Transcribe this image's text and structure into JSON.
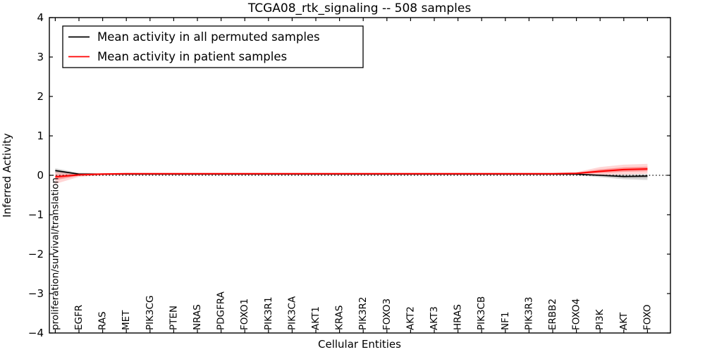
{
  "title": "TCGA08_rtk_signaling -- 508 samples",
  "colors": {
    "background": "#ffffff",
    "axis": "#000000",
    "permuted_line": "#000000",
    "patient_line": "#ff0000",
    "permuted_band": "rgba(0,0,0,0.16)",
    "patient_band": "rgba(255,0,0,0.18)"
  },
  "chart_data": {
    "type": "line",
    "title": "TCGA08_rtk_signaling -- 508 samples",
    "xlabel": "Cellular Entities",
    "ylabel": "Inferred Activity",
    "ylim": [
      -4,
      4
    ],
    "yticks": [
      -4,
      -3,
      -2,
      -1,
      0,
      1,
      2,
      3,
      4
    ],
    "grid": false,
    "zero_line": "dotted",
    "legend_position": "upper left",
    "categories": [
      "proliferation/survival/translation",
      "EGFR",
      "RAS",
      "MET",
      "PIK3CG",
      "PTEN",
      "NRAS",
      "PDGFRA",
      "FOXO1",
      "PIK3R1",
      "PIK3CA",
      "AKT1",
      "KRAS",
      "PIK3R2",
      "FOXO3",
      "AKT2",
      "AKT3",
      "HRAS",
      "PIK3CB",
      "NF1",
      "PIK3R3",
      "ERBB2",
      "FOXO4",
      "PI3K",
      "AKT",
      "FOXO"
    ],
    "series": [
      {
        "name": "Mean activity in all permuted samples",
        "color": "#000000",
        "values": [
          0.12,
          0.03,
          0.03,
          0.03,
          0.03,
          0.03,
          0.03,
          0.03,
          0.03,
          0.03,
          0.03,
          0.03,
          0.03,
          0.03,
          0.03,
          0.03,
          0.03,
          0.03,
          0.03,
          0.03,
          0.03,
          0.03,
          0.03,
          0.0,
          -0.03,
          -0.02
        ],
        "band_upper": [
          0.18,
          0.06,
          0.05,
          0.05,
          0.05,
          0.05,
          0.05,
          0.05,
          0.05,
          0.05,
          0.05,
          0.05,
          0.05,
          0.05,
          0.05,
          0.05,
          0.05,
          0.05,
          0.05,
          0.05,
          0.05,
          0.05,
          0.04,
          0.03,
          0.02,
          0.03
        ],
        "band_lower": [
          0.05,
          0.0,
          0.01,
          0.01,
          0.01,
          0.01,
          0.01,
          0.01,
          0.01,
          0.01,
          0.01,
          0.01,
          0.01,
          0.01,
          0.01,
          0.01,
          0.01,
          0.01,
          0.01,
          0.01,
          0.01,
          0.01,
          0.0,
          -0.05,
          -0.1,
          -0.12
        ]
      },
      {
        "name": "Mean activity in patient samples",
        "color": "#ff0000",
        "values": [
          -0.04,
          0.01,
          0.03,
          0.04,
          0.04,
          0.04,
          0.04,
          0.04,
          0.04,
          0.04,
          0.04,
          0.04,
          0.04,
          0.04,
          0.04,
          0.04,
          0.04,
          0.04,
          0.04,
          0.04,
          0.04,
          0.04,
          0.05,
          0.1,
          0.145,
          0.16
        ],
        "band_upper": [
          0.09,
          0.06,
          0.06,
          0.06,
          0.06,
          0.06,
          0.06,
          0.06,
          0.06,
          0.06,
          0.06,
          0.06,
          0.06,
          0.06,
          0.06,
          0.06,
          0.06,
          0.06,
          0.06,
          0.06,
          0.06,
          0.06,
          0.08,
          0.21,
          0.27,
          0.29
        ],
        "band_lower": [
          -0.22,
          -0.04,
          0.0,
          0.01,
          0.01,
          0.01,
          0.01,
          0.01,
          0.01,
          0.01,
          0.01,
          0.01,
          0.01,
          0.01,
          0.01,
          0.01,
          0.01,
          0.01,
          0.01,
          0.01,
          0.01,
          0.01,
          0.02,
          0.01,
          0.02,
          0.04
        ]
      }
    ]
  }
}
